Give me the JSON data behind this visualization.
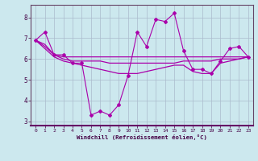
{
  "xlabel": "Windchill (Refroidissement éolien,°C)",
  "background_color": "#cce8ee",
  "grid_color": "#aabbcc",
  "line_color": "#aa00aa",
  "x_data": [
    0,
    1,
    2,
    3,
    4,
    5,
    6,
    7,
    8,
    9,
    10,
    11,
    12,
    13,
    14,
    15,
    16,
    17,
    18,
    19,
    20,
    21,
    22,
    23
  ],
  "series1": [
    6.9,
    7.3,
    6.2,
    6.2,
    5.8,
    5.8,
    3.3,
    3.5,
    3.3,
    3.8,
    5.2,
    7.3,
    6.6,
    7.9,
    7.8,
    8.2,
    6.4,
    5.5,
    5.5,
    5.3,
    5.9,
    6.5,
    6.6,
    6.1
  ],
  "series2": [
    6.9,
    6.7,
    6.2,
    6.1,
    6.1,
    6.1,
    6.1,
    6.1,
    6.1,
    6.1,
    6.1,
    6.1,
    6.1,
    6.1,
    6.1,
    6.1,
    6.1,
    6.1,
    6.1,
    6.1,
    6.1,
    6.1,
    6.1,
    6.1
  ],
  "series3": [
    6.9,
    6.6,
    6.2,
    6.0,
    5.9,
    5.9,
    5.9,
    5.9,
    5.8,
    5.8,
    5.8,
    5.8,
    5.8,
    5.8,
    5.8,
    5.8,
    5.9,
    5.9,
    5.9,
    5.9,
    6.0,
    6.0,
    6.0,
    6.1
  ],
  "series4": [
    6.9,
    6.5,
    6.1,
    5.9,
    5.8,
    5.7,
    5.6,
    5.5,
    5.4,
    5.3,
    5.3,
    5.3,
    5.4,
    5.5,
    5.6,
    5.7,
    5.7,
    5.4,
    5.3,
    5.3,
    5.8,
    5.9,
    6.0,
    6.1
  ],
  "ylim": [
    2.8,
    8.6
  ],
  "yticks": [
    3,
    4,
    5,
    6,
    7,
    8
  ],
  "xlim": [
    -0.5,
    23.5
  ]
}
